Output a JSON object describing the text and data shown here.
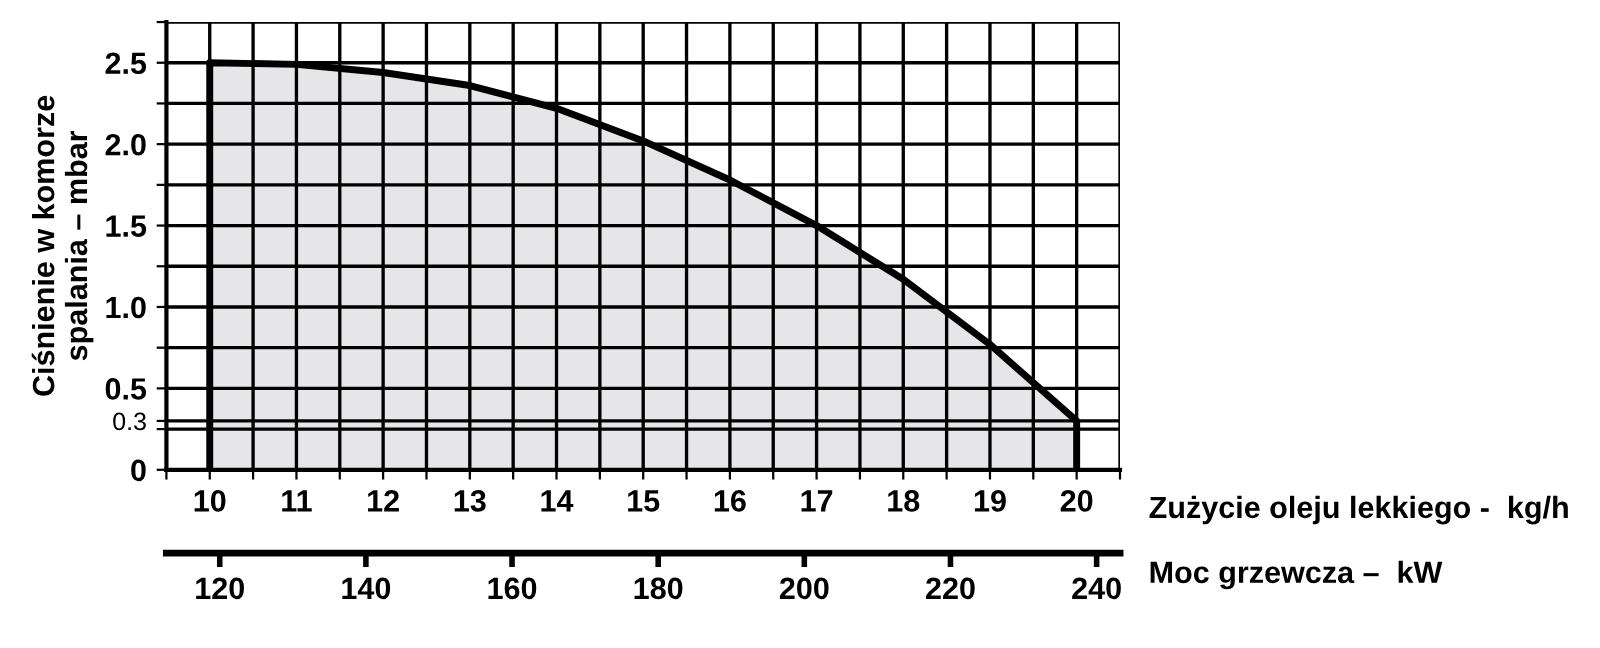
{
  "chart_data": {
    "type": "area",
    "xlabel": "Zużycie oleju lekkiego -  kg/h",
    "x2label": "Moc grzewcza –  kW",
    "ylabel": "Ciśnienie w komorze\nspalania – mbar",
    "x": [
      10,
      10,
      11,
      12,
      13,
      14,
      15,
      16,
      17,
      18,
      19,
      20,
      20
    ],
    "series": [
      {
        "color": "#e6e6e8",
        "values": [
          0,
          2.5,
          2.49,
          2.44,
          2.36,
          2.22,
          2.02,
          1.78,
          1.5,
          1.17,
          0.77,
          0.3,
          0
        ]
      }
    ],
    "xlim": [
      9.5,
      20.5
    ],
    "xticks": [
      {
        "value": 9.5,
        "label": null
      },
      10,
      {
        "value": 10.5,
        "label": null
      },
      11,
      {
        "value": 11.5,
        "label": null
      },
      12,
      {
        "value": 12.5,
        "label": null
      },
      13,
      {
        "value": 13.5,
        "label": null
      },
      14,
      {
        "value": 14.5,
        "label": null
      },
      15,
      {
        "value": 15.5,
        "label": null
      },
      16,
      {
        "value": 16.5,
        "label": null
      },
      17,
      {
        "value": 17.5,
        "label": null
      },
      18,
      {
        "value": 18.5,
        "label": null
      },
      19,
      {
        "value": 19.5,
        "label": null
      },
      20,
      {
        "value": 20.5,
        "label": null
      }
    ],
    "ylim": [
      0,
      2.75
    ],
    "yticks": [
      0,
      {
        "value": 0.25,
        "label": null
      },
      0.3,
      0.5,
      {
        "value": 0.75,
        "label": null
      },
      {
        "value": 1.0,
        "label": "1.0"
      },
      {
        "value": 1.25,
        "label": null
      },
      1.5,
      {
        "value": 1.75,
        "label": null
      },
      {
        "value": 2.0,
        "label": "2.0"
      },
      {
        "value": 2.25,
        "label": null
      },
      2.5,
      {
        "value": 2.75,
        "label": null
      }
    ],
    "x2lim": [
      112.7,
      243.2
    ],
    "x2ticks": [
      120,
      140,
      160,
      180,
      200,
      220,
      240
    ],
    "grid": true
  }
}
